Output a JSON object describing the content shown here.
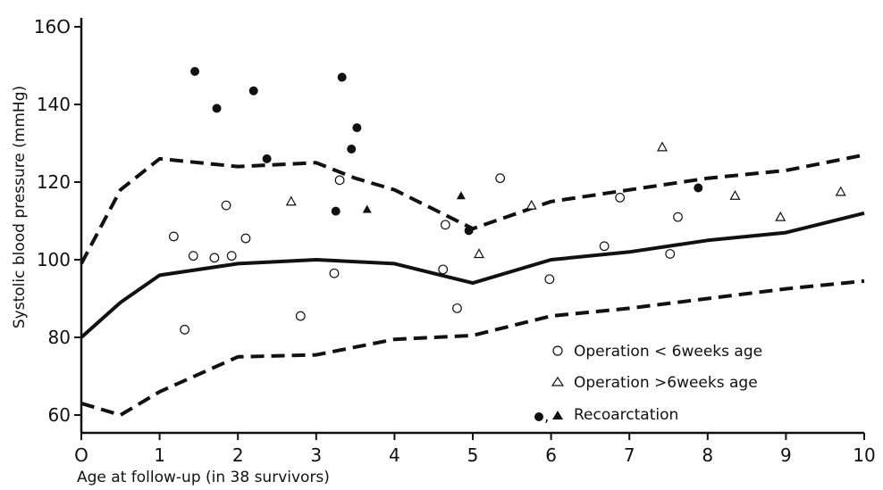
{
  "chart_data": {
    "type": "scatter",
    "xlabel": "Age at follow-up (in 38 survivors)",
    "ylabel": "Systolic blood pressure (mmHg)",
    "xlim": [
      0,
      10
    ],
    "ylim": [
      55,
      160
    ],
    "x_ticks": [
      0,
      1,
      2,
      3,
      4,
      5,
      6,
      7,
      8,
      9,
      10
    ],
    "x_tick_labels": [
      "O",
      "1",
      "2",
      "3",
      "4",
      "5",
      "6",
      "7",
      "8",
      "9",
      "10"
    ],
    "y_ticks": [
      60,
      80,
      100,
      120,
      140,
      160
    ],
    "y_tick_labels": [
      "60",
      "80",
      "100",
      "120",
      "140",
      "16O"
    ],
    "grid": false,
    "legend_position": "bottom-right",
    "legend": [
      {
        "marker": "open-circle",
        "label": "Operation < 6weeks age"
      },
      {
        "marker": "open-triangle",
        "label": "Operation >6weeks age"
      },
      {
        "marker": "filled-circle-and-triangle",
        "label": "Recoarctation"
      }
    ],
    "reference_lines": [
      {
        "style": "dashed",
        "x": [
          0,
          0.5,
          1,
          2,
          3,
          3.5,
          4,
          5,
          6,
          7,
          8,
          9,
          10
        ],
        "y": [
          99,
          118,
          126,
          124,
          125,
          121,
          118,
          108,
          115,
          118,
          121,
          123,
          127
        ]
      },
      {
        "style": "solid",
        "x": [
          0,
          0.5,
          1,
          2,
          3,
          4,
          5,
          6,
          7,
          8,
          9,
          10
        ],
        "y": [
          80,
          89,
          96,
          99,
          100,
          99,
          94,
          100,
          102,
          105,
          107,
          112
        ]
      },
      {
        "style": "dashed",
        "x": [
          0,
          0.5,
          1,
          2,
          3,
          4,
          5,
          6,
          7,
          8,
          9,
          10
        ],
        "y": [
          63,
          60,
          66,
          75,
          75.5,
          79.5,
          80.5,
          85.5,
          87.5,
          90,
          92.5,
          94.5
        ]
      }
    ],
    "series": [
      {
        "marker": "open-circle",
        "points": [
          [
            1.18,
            106
          ],
          [
            1.32,
            82
          ],
          [
            1.43,
            101
          ],
          [
            1.7,
            100.5
          ],
          [
            1.85,
            114
          ],
          [
            1.92,
            101
          ],
          [
            2.1,
            105.5
          ],
          [
            2.8,
            85.5
          ],
          [
            3.23,
            96.5
          ],
          [
            3.3,
            120.5
          ],
          [
            4.62,
            97.5
          ],
          [
            4.65,
            109
          ],
          [
            4.8,
            87.5
          ],
          [
            5.35,
            121
          ],
          [
            5.98,
            95
          ],
          [
            6.68,
            103.5
          ],
          [
            6.88,
            116
          ],
          [
            7.52,
            101.5
          ],
          [
            7.62,
            111
          ]
        ]
      },
      {
        "marker": "open-triangle",
        "points": [
          [
            2.68,
            115
          ],
          [
            5.08,
            101.5
          ],
          [
            5.75,
            114
          ],
          [
            7.42,
            129
          ],
          [
            8.35,
            116.5
          ],
          [
            8.93,
            111
          ],
          [
            9.7,
            117.5
          ]
        ]
      },
      {
        "marker": "filled-circle",
        "points": [
          [
            1.45,
            148.5
          ],
          [
            1.73,
            139
          ],
          [
            2.2,
            143.5
          ],
          [
            2.37,
            126
          ],
          [
            3.25,
            112.5
          ],
          [
            3.33,
            147
          ],
          [
            3.45,
            128.5
          ],
          [
            3.52,
            134
          ],
          [
            4.95,
            107.5
          ],
          [
            7.88,
            118.5
          ]
        ]
      },
      {
        "marker": "filled-triangle",
        "points": [
          [
            3.65,
            113
          ],
          [
            4.85,
            116.5
          ]
        ]
      }
    ]
  }
}
